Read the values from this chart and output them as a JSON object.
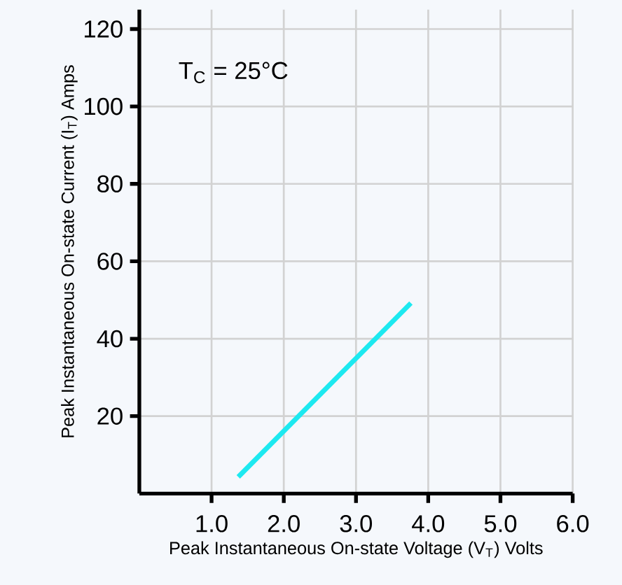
{
  "chart_data": {
    "type": "line",
    "xlabel": "Peak Instantaneous On-state Voltage (V$_{T}$) Volts",
    "ylabel": "Peak Instantaneous On-state Current (I$_{T}$) Amps",
    "annotations": [
      "T$_{C}$ = 25°C"
    ],
    "x": [
      1.37,
      3.76
    ],
    "series": [
      {
        "color": "#1de9f0",
        "values": [
          4.3,
          49.2
        ]
      }
    ],
    "xlim": [
      0,
      6
    ],
    "ylim": [
      0,
      125
    ],
    "xticks": [
      {
        "value": 1,
        "label": "1.0"
      },
      {
        "value": 2,
        "label": "2.0"
      },
      {
        "value": 3,
        "label": "3.0"
      },
      {
        "value": 4,
        "label": "4.0"
      },
      {
        "value": 5,
        "label": "5.0"
      },
      {
        "value": 6,
        "label": "6.0"
      }
    ],
    "yticks": [
      20,
      40,
      60,
      80,
      100,
      120
    ],
    "grid": true,
    "marker": "none",
    "line_style": "solid"
  }
}
